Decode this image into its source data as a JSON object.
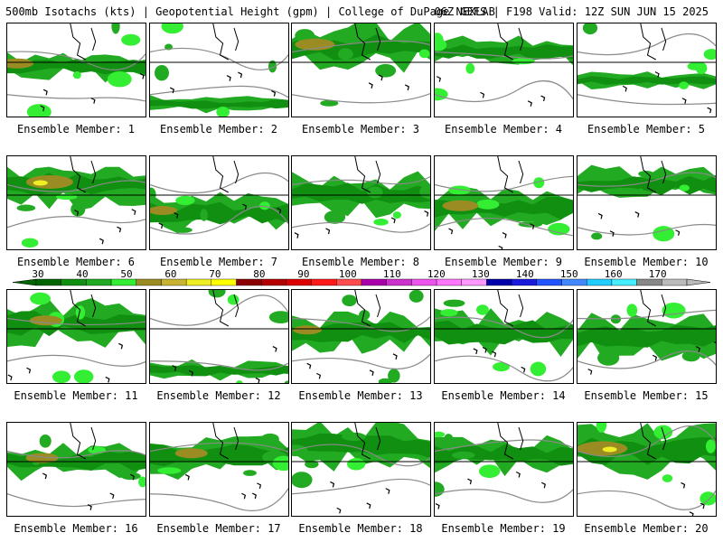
{
  "header": {
    "left": "500mb Isotachs (kts) | Geopotential Height (gpm) | College of DuPage NEXLAB",
    "right": "06Z GEFS | F198 Valid: 12Z SUN JUN 15 2025"
  },
  "colorbar": {
    "ticks": [
      "30",
      "40",
      "50",
      "60",
      "70",
      "80",
      "90",
      "100",
      "110",
      "120",
      "130",
      "140",
      "150",
      "160",
      "170"
    ],
    "colors": [
      "#006400",
      "#118f11",
      "#22aa22",
      "#33ee33",
      "#9a8c22",
      "#c8b432",
      "#eeee22",
      "#ffff00",
      "#8b0000",
      "#b40000",
      "#dd0000",
      "#ff1a1a",
      "#ff4d4d",
      "#aa00aa",
      "#cc33cc",
      "#ee55ee",
      "#ff77ff",
      "#ff99ff",
      "#0000aa",
      "#1a1add",
      "#2255ff",
      "#4488ff",
      "#22ccff",
      "#44eeff",
      "#888888",
      "#bbbbbb"
    ]
  },
  "members": [
    {
      "label": "Ensemble Member: 1"
    },
    {
      "label": "Ensemble Member: 2"
    },
    {
      "label": "Ensemble Member: 3"
    },
    {
      "label": "Ensemble Member: 4"
    },
    {
      "label": "Ensemble Member: 5"
    },
    {
      "label": "Ensemble Member: 6"
    },
    {
      "label": "Ensemble Member: 7"
    },
    {
      "label": "Ensemble Member: 8"
    },
    {
      "label": "Ensemble Member: 9"
    },
    {
      "label": "Ensemble Member: 10"
    },
    {
      "label": "Ensemble Member: 11"
    },
    {
      "label": "Ensemble Member: 12"
    },
    {
      "label": "Ensemble Member: 13"
    },
    {
      "label": "Ensemble Member: 14"
    },
    {
      "label": "Ensemble Member: 15"
    },
    {
      "label": "Ensemble Member: 16"
    },
    {
      "label": "Ensemble Member: 17"
    },
    {
      "label": "Ensemble Member: 18"
    },
    {
      "label": "Ensemble Member: 19"
    },
    {
      "label": "Ensemble Member: 20"
    }
  ]
}
